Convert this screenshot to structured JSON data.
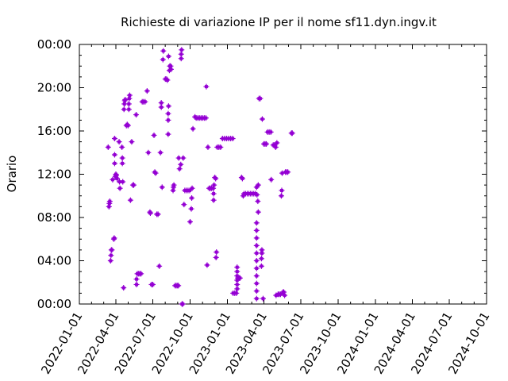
{
  "chart_data": {
    "type": "scatter",
    "title": "Richieste di variazione IP per il nome sf11.dyn.ingv.it",
    "ylabel": "Orario",
    "xlabel": "",
    "marker_color": "#9400d3",
    "grid": false,
    "xlim": [
      "2022-01-01",
      "2024-10-01"
    ],
    "ylim": [
      0,
      24
    ],
    "x_ticks": [
      "2022-01-01",
      "2022-04-01",
      "2022-07-01",
      "2022-10-01",
      "2023-01-01",
      "2023-04-01",
      "2023-07-01",
      "2023-10-01",
      "2024-01-01",
      "2024-04-01",
      "2024-07-01",
      "2024-10-01"
    ],
    "y_ticks": [
      0,
      4,
      8,
      12,
      16,
      20,
      24
    ],
    "y_tick_labels": [
      "00:00",
      "04:00",
      "08:00",
      "12:00",
      "16:00",
      "20:00",
      "00:00"
    ],
    "points": [
      [
        "2022-03-13",
        14.5
      ],
      [
        "2022-03-15",
        9.0
      ],
      [
        "2022-03-16",
        9.3
      ],
      [
        "2022-03-17",
        9.5
      ],
      [
        "2022-03-19",
        4.0
      ],
      [
        "2022-03-20",
        4.5
      ],
      [
        "2022-03-21",
        5.0
      ],
      [
        "2022-03-22",
        5.0
      ],
      [
        "2022-03-24",
        11.5
      ],
      [
        "2022-03-27",
        6.0
      ],
      [
        "2022-03-28",
        6.1
      ],
      [
        "2022-03-29",
        13.0
      ],
      [
        "2022-03-29",
        13.8
      ],
      [
        "2022-03-29",
        15.3
      ],
      [
        "2022-03-31",
        11.8
      ],
      [
        "2022-04-01",
        12.0
      ],
      [
        "2022-04-02",
        11.9
      ],
      [
        "2022-04-04",
        11.6
      ],
      [
        "2022-04-09",
        15.0
      ],
      [
        "2022-04-10",
        11.3
      ],
      [
        "2022-04-11",
        10.7
      ],
      [
        "2022-04-16",
        14.5
      ],
      [
        "2022-04-17",
        13.0
      ],
      [
        "2022-04-17",
        13.5
      ],
      [
        "2022-04-18",
        11.3
      ],
      [
        "2022-04-20",
        1.5
      ],
      [
        "2022-04-21",
        18.0
      ],
      [
        "2022-04-22",
        18.5
      ],
      [
        "2022-04-23",
        18.8
      ],
      [
        "2022-04-24",
        18.9
      ],
      [
        "2022-04-27",
        16.5
      ],
      [
        "2022-04-29",
        16.6
      ],
      [
        "2022-05-01",
        16.5
      ],
      [
        "2022-05-03",
        18.0
      ],
      [
        "2022-05-03",
        18.5
      ],
      [
        "2022-05-04",
        19.0
      ],
      [
        "2022-05-05",
        19.3
      ],
      [
        "2022-05-07",
        9.6
      ],
      [
        "2022-05-10",
        15.0
      ],
      [
        "2022-05-13",
        11.0
      ],
      [
        "2022-05-15",
        11.0
      ],
      [
        "2022-05-21",
        17.5
      ],
      [
        "2022-05-22",
        1.8
      ],
      [
        "2022-05-22",
        2.3
      ],
      [
        "2022-05-24",
        2.8
      ],
      [
        "2022-05-27",
        2.8
      ],
      [
        "2022-05-30",
        2.8
      ],
      [
        "2022-06-02",
        2.8
      ],
      [
        "2022-06-05",
        18.7
      ],
      [
        "2022-06-08",
        18.7
      ],
      [
        "2022-06-12",
        18.7
      ],
      [
        "2022-06-17",
        19.7
      ],
      [
        "2022-06-20",
        14.0
      ],
      [
        "2022-06-24",
        8.5
      ],
      [
        "2022-06-25",
        8.4
      ],
      [
        "2022-06-28",
        1.8
      ],
      [
        "2022-07-01",
        1.8
      ],
      [
        "2022-07-04",
        15.6
      ],
      [
        "2022-07-06",
        12.2
      ],
      [
        "2022-07-08",
        12.1
      ],
      [
        "2022-07-11",
        8.3
      ],
      [
        "2022-07-14",
        8.3
      ],
      [
        "2022-07-17",
        3.5
      ],
      [
        "2022-07-20",
        14.0
      ],
      [
        "2022-07-22",
        18.2
      ],
      [
        "2022-07-22",
        18.6
      ],
      [
        "2022-07-24",
        10.8
      ],
      [
        "2022-07-26",
        22.6
      ],
      [
        "2022-07-27",
        23.4
      ],
      [
        "2022-08-01",
        20.8
      ],
      [
        "2022-08-04",
        20.8
      ],
      [
        "2022-08-06",
        20.7
      ],
      [
        "2022-08-08",
        15.7
      ],
      [
        "2022-08-08",
        17.0
      ],
      [
        "2022-08-08",
        17.6
      ],
      [
        "2022-08-09",
        18.3
      ],
      [
        "2022-08-09",
        22.9
      ],
      [
        "2022-08-11",
        21.6
      ],
      [
        "2022-08-12",
        22.0
      ],
      [
        "2022-08-14",
        22.0
      ],
      [
        "2022-08-15",
        21.7
      ],
      [
        "2022-08-20",
        10.5
      ],
      [
        "2022-08-21",
        10.8
      ],
      [
        "2022-08-22",
        11.0
      ],
      [
        "2022-08-25",
        1.7
      ],
      [
        "2022-08-28",
        1.7
      ],
      [
        "2022-08-31",
        1.7
      ],
      [
        "2022-09-02",
        1.7
      ],
      [
        "2022-09-03",
        13.5
      ],
      [
        "2022-09-05",
        12.5
      ],
      [
        "2022-09-08",
        12.9
      ],
      [
        "2022-09-09",
        22.7
      ],
      [
        "2022-09-09",
        23.1
      ],
      [
        "2022-09-10",
        23.5
      ],
      [
        "2022-09-11",
        0.0
      ],
      [
        "2022-09-13",
        0.0
      ],
      [
        "2022-09-14",
        13.5
      ],
      [
        "2022-09-16",
        9.2
      ],
      [
        "2022-09-18",
        10.5
      ],
      [
        "2022-09-22",
        10.5
      ],
      [
        "2022-09-26",
        10.5
      ],
      [
        "2022-09-30",
        10.5
      ],
      [
        "2022-10-01",
        7.6
      ],
      [
        "2022-10-04",
        8.8
      ],
      [
        "2022-10-05",
        9.8
      ],
      [
        "2022-10-06",
        10.7
      ],
      [
        "2022-10-08",
        16.2
      ],
      [
        "2022-10-13",
        17.3
      ],
      [
        "2022-10-16",
        17.2
      ],
      [
        "2022-10-20",
        17.2
      ],
      [
        "2022-10-24",
        17.2
      ],
      [
        "2022-10-28",
        17.2
      ],
      [
        "2022-11-01",
        17.2
      ],
      [
        "2022-11-05",
        17.2
      ],
      [
        "2022-11-09",
        17.2
      ],
      [
        "2022-11-10",
        20.1
      ],
      [
        "2022-11-12",
        3.6
      ],
      [
        "2022-11-14",
        14.5
      ],
      [
        "2022-11-17",
        10.7
      ],
      [
        "2022-11-20",
        10.7
      ],
      [
        "2022-11-23",
        10.7
      ],
      [
        "2022-11-27",
        10.7
      ],
      [
        "2022-11-28",
        9.6
      ],
      [
        "2022-11-28",
        10.2
      ],
      [
        "2022-11-29",
        11.0
      ],
      [
        "2022-12-01",
        11.7
      ],
      [
        "2022-12-03",
        11.6
      ],
      [
        "2022-12-04",
        4.3
      ],
      [
        "2022-12-05",
        4.8
      ],
      [
        "2022-12-07",
        14.5
      ],
      [
        "2022-12-11",
        14.5
      ],
      [
        "2022-12-15",
        14.5
      ],
      [
        "2022-12-20",
        15.3
      ],
      [
        "2022-12-25",
        15.3
      ],
      [
        "2022-12-30",
        15.3
      ],
      [
        "2023-01-04",
        15.3
      ],
      [
        "2023-01-09",
        15.3
      ],
      [
        "2023-01-14",
        15.3
      ],
      [
        "2023-01-15",
        1.0
      ],
      [
        "2023-01-19",
        1.0
      ],
      [
        "2023-01-23",
        1.0
      ],
      [
        "2023-01-25",
        1.4
      ],
      [
        "2023-01-25",
        1.8
      ],
      [
        "2023-01-25",
        2.2
      ],
      [
        "2023-01-25",
        2.6
      ],
      [
        "2023-01-25",
        3.0
      ],
      [
        "2023-01-25",
        3.4
      ],
      [
        "2023-01-27",
        2.4
      ],
      [
        "2023-01-30",
        2.4
      ],
      [
        "2023-02-01",
        2.4
      ],
      [
        "2023-02-05",
        11.7
      ],
      [
        "2023-02-07",
        11.6
      ],
      [
        "2023-02-09",
        10.0
      ],
      [
        "2023-02-11",
        10.2
      ],
      [
        "2023-02-15",
        10.2
      ],
      [
        "2023-02-19",
        10.2
      ],
      [
        "2023-02-23",
        10.2
      ],
      [
        "2023-02-27",
        10.2
      ],
      [
        "2023-03-03",
        10.2
      ],
      [
        "2023-03-07",
        10.2
      ],
      [
        "2023-03-11",
        10.2
      ],
      [
        "2023-03-14",
        10.8
      ],
      [
        "2023-03-15",
        10.1
      ],
      [
        "2023-03-17",
        9.5
      ],
      [
        "2023-03-18",
        11.0
      ],
      [
        "2023-03-14",
        0.5
      ],
      [
        "2023-03-14",
        1.2
      ],
      [
        "2023-03-14",
        1.9
      ],
      [
        "2023-03-14",
        2.6
      ],
      [
        "2023-03-14",
        3.3
      ],
      [
        "2023-03-14",
        4.0
      ],
      [
        "2023-03-14",
        4.7
      ],
      [
        "2023-03-14",
        5.4
      ],
      [
        "2023-03-14",
        6.1
      ],
      [
        "2023-03-14",
        6.8
      ],
      [
        "2023-03-14",
        7.5
      ],
      [
        "2023-03-18",
        8.5
      ],
      [
        "2023-03-20",
        19.0
      ],
      [
        "2023-03-23",
        19.0
      ],
      [
        "2023-03-26",
        3.5
      ],
      [
        "2023-03-26",
        4.2
      ],
      [
        "2023-03-27",
        4.7
      ],
      [
        "2023-03-27",
        5.0
      ],
      [
        "2023-03-28",
        17.1
      ],
      [
        "2023-03-30",
        0.5
      ],
      [
        "2023-04-01",
        14.8
      ],
      [
        "2023-04-04",
        14.8
      ],
      [
        "2023-04-07",
        14.8
      ],
      [
        "2023-04-10",
        15.9
      ],
      [
        "2023-04-14",
        15.9
      ],
      [
        "2023-04-18",
        15.9
      ],
      [
        "2023-04-19",
        11.5
      ],
      [
        "2023-04-24",
        14.7
      ],
      [
        "2023-04-27",
        14.7
      ],
      [
        "2023-04-30",
        14.5
      ],
      [
        "2023-05-01",
        0.8
      ],
      [
        "2023-05-03",
        14.9
      ],
      [
        "2023-05-06",
        0.9
      ],
      [
        "2023-05-09",
        0.9
      ],
      [
        "2023-05-12",
        0.9
      ],
      [
        "2023-05-14",
        10.0
      ],
      [
        "2023-05-15",
        10.5
      ],
      [
        "2023-05-16",
        12.1
      ],
      [
        "2023-05-18",
        1.1
      ],
      [
        "2023-05-20",
        1.1
      ],
      [
        "2023-05-22",
        0.8
      ],
      [
        "2023-05-24",
        12.2
      ],
      [
        "2023-05-27",
        12.2
      ],
      [
        "2023-05-30",
        12.2
      ],
      [
        "2023-06-08",
        15.8
      ],
      [
        "2023-06-10",
        15.8
      ]
    ]
  }
}
